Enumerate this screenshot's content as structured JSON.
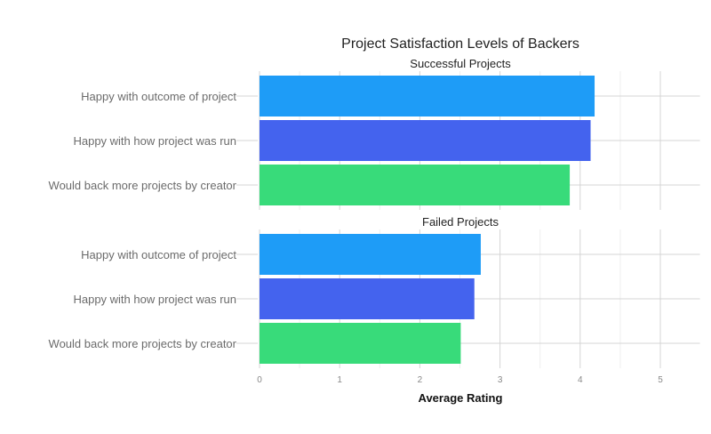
{
  "chart_data": {
    "type": "bar",
    "orientation": "horizontal",
    "title": "Project Satisfaction Levels of Backers",
    "xlabel": "Average Rating",
    "ylabel": "",
    "xlim": [
      0,
      5.25
    ],
    "x_ticks": [
      "0",
      "1",
      "2",
      "3",
      "4",
      "5"
    ],
    "grid": true,
    "categories": [
      "Happy with outcome of project",
      "Happy with how project was run",
      "Would back more projects by creator"
    ],
    "colors": [
      "#1e9cf7",
      "#4463ee",
      "#38db7a"
    ],
    "panels": [
      {
        "title": "Successful Projects",
        "values": [
          4.18,
          4.13,
          3.87
        ]
      },
      {
        "title": "Failed Projects",
        "values": [
          2.76,
          2.68,
          2.51
        ]
      }
    ]
  }
}
